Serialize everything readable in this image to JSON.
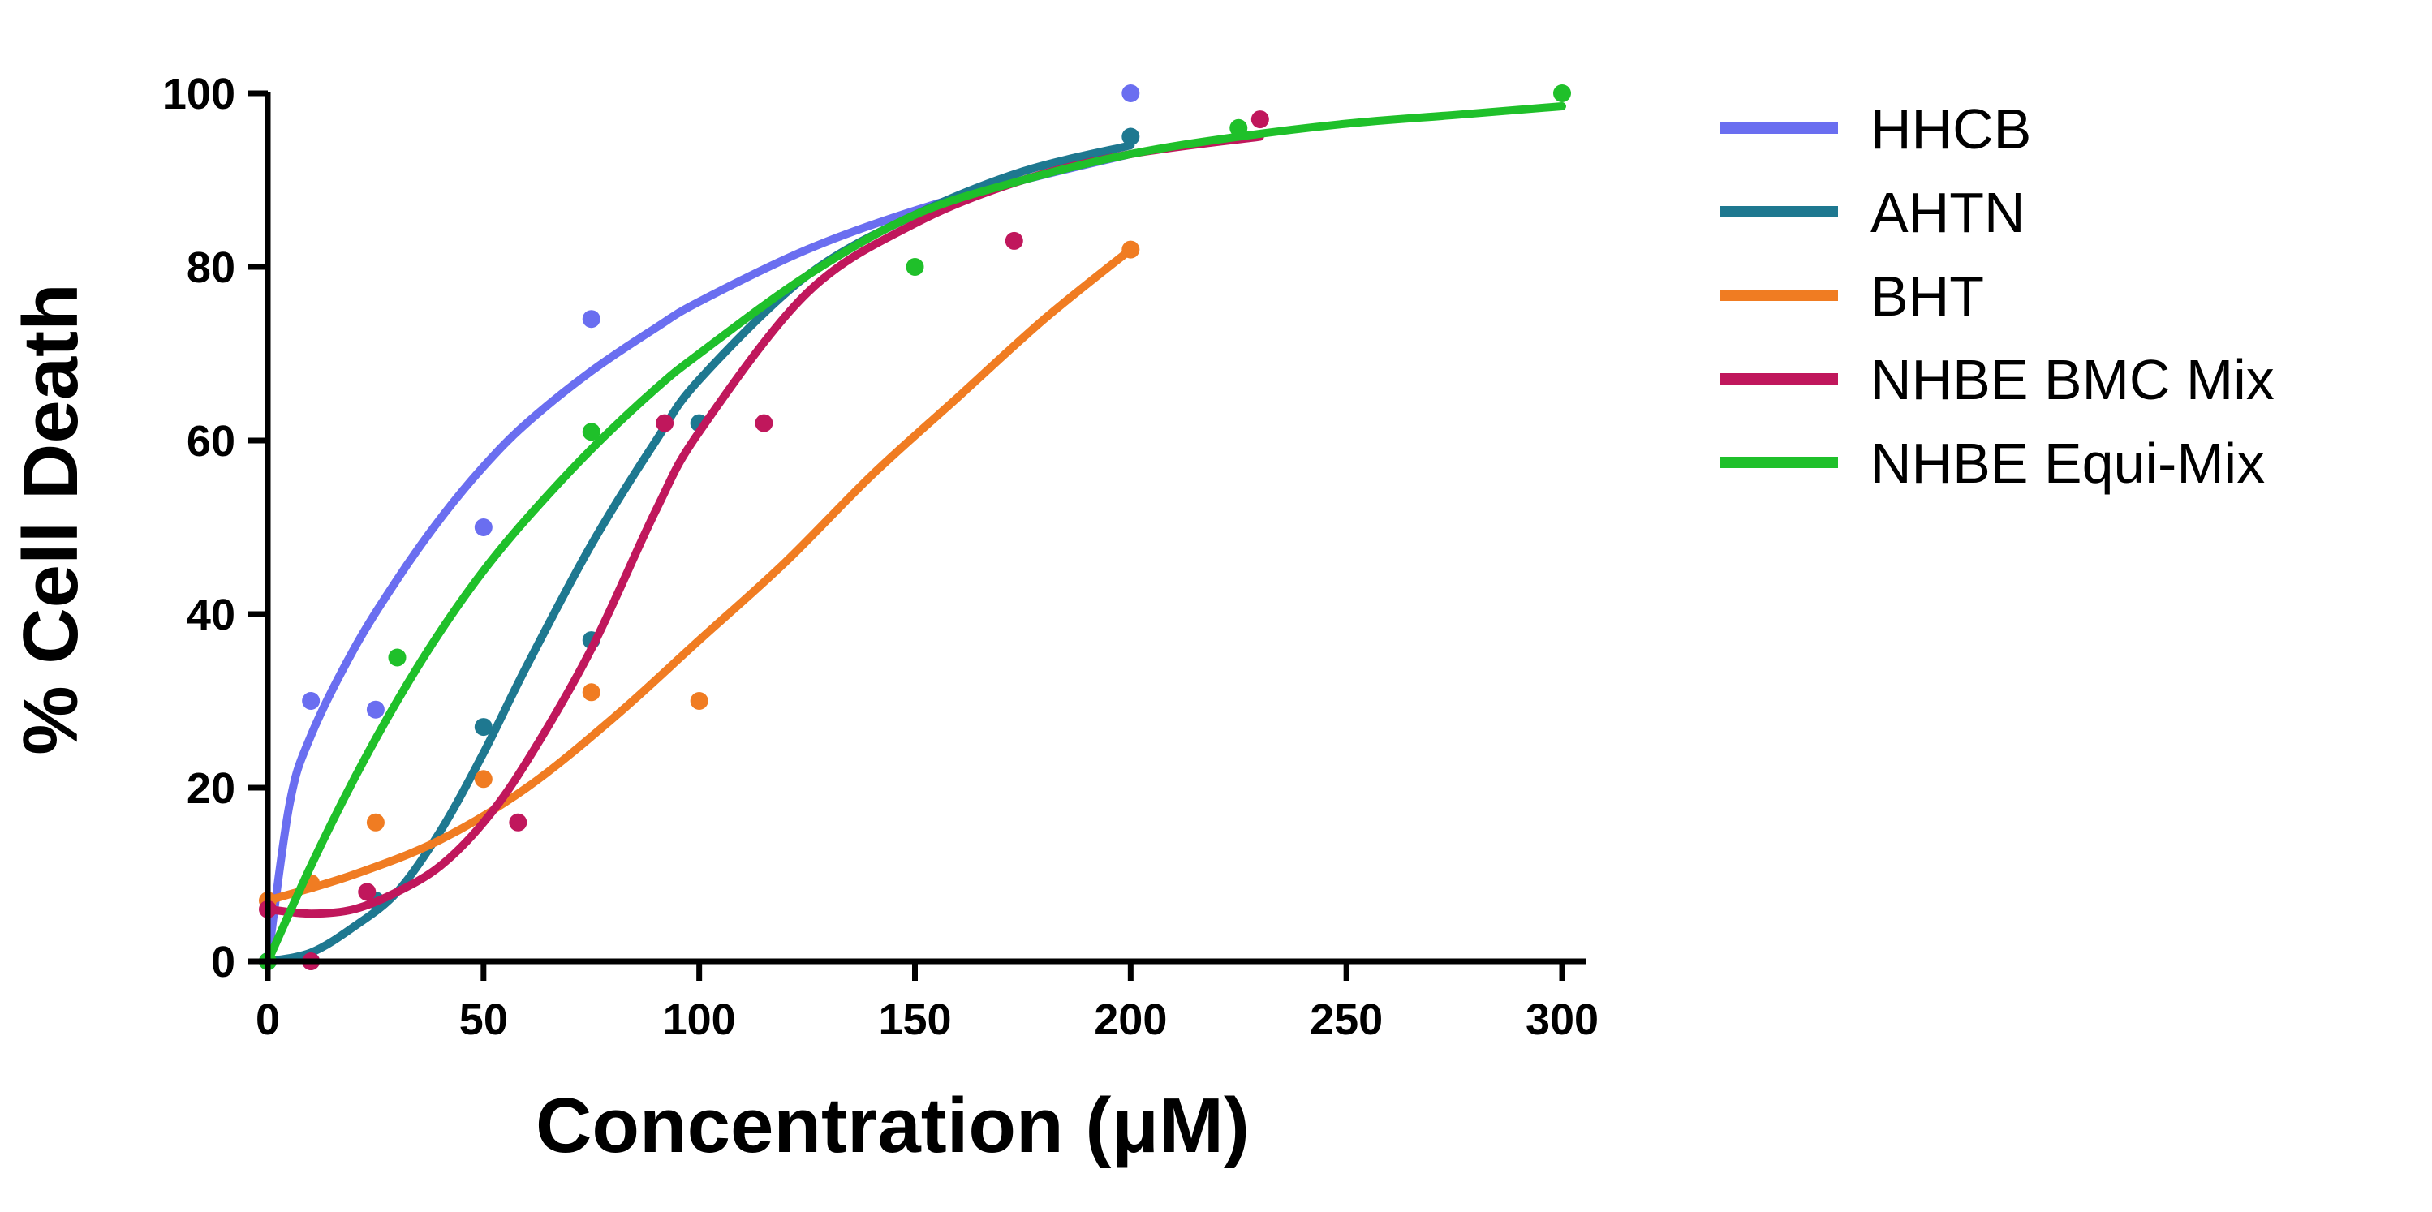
{
  "chart_data": {
    "type": "line",
    "title": "",
    "xlabel": "Concentration  (μM)",
    "ylabel": "% Cell Death",
    "xlim": [
      0,
      300
    ],
    "ylim": [
      0,
      100
    ],
    "xticks": [
      0,
      50,
      100,
      150,
      200,
      250,
      300
    ],
    "yticks": [
      0,
      20,
      40,
      60,
      80,
      100
    ],
    "x_tick_labels": [
      "0",
      "50",
      "100",
      "150",
      "200",
      "250",
      "300"
    ],
    "y_tick_labels": [
      "0",
      "20",
      "40",
      "60",
      "80",
      "100"
    ],
    "grid": false,
    "legend_position": "right",
    "series": [
      {
        "name": "HHCB",
        "color": "#6a6ef0",
        "points": [
          [
            0,
            0
          ],
          [
            10,
            30
          ],
          [
            25,
            29
          ],
          [
            50,
            50
          ],
          [
            75,
            74
          ],
          [
            200,
            100
          ]
        ],
        "curve": [
          [
            0,
            0
          ],
          [
            5,
            18
          ],
          [
            10,
            26
          ],
          [
            20,
            36
          ],
          [
            30,
            44
          ],
          [
            40,
            51
          ],
          [
            50,
            57
          ],
          [
            60,
            62
          ],
          [
            75,
            68
          ],
          [
            90,
            73
          ],
          [
            100,
            76
          ],
          [
            125,
            82
          ],
          [
            150,
            86.5
          ],
          [
            175,
            90
          ],
          [
            200,
            93
          ]
        ]
      },
      {
        "name": "AHTN",
        "color": "#1e7890",
        "points": [
          [
            0,
            0
          ],
          [
            10,
            0
          ],
          [
            25,
            7
          ],
          [
            50,
            27
          ],
          [
            75,
            37
          ],
          [
            100,
            62
          ],
          [
            200,
            95
          ]
        ],
        "curve": [
          [
            0,
            0
          ],
          [
            10,
            1
          ],
          [
            20,
            4
          ],
          [
            30,
            8
          ],
          [
            40,
            15
          ],
          [
            50,
            24
          ],
          [
            60,
            34
          ],
          [
            75,
            48
          ],
          [
            90,
            60
          ],
          [
            100,
            67
          ],
          [
            125,
            79
          ],
          [
            150,
            86
          ],
          [
            175,
            91
          ],
          [
            200,
            94
          ]
        ]
      },
      {
        "name": "BHT",
        "color": "#f07c22",
        "points": [
          [
            0,
            7
          ],
          [
            10,
            9
          ],
          [
            25,
            16
          ],
          [
            50,
            21
          ],
          [
            75,
            31
          ],
          [
            100,
            30
          ],
          [
            200,
            82
          ]
        ],
        "curve": [
          [
            0,
            7
          ],
          [
            20,
            10
          ],
          [
            40,
            14
          ],
          [
            60,
            20
          ],
          [
            80,
            28
          ],
          [
            100,
            37
          ],
          [
            120,
            46
          ],
          [
            140,
            56
          ],
          [
            160,
            65
          ],
          [
            180,
            74
          ],
          [
            200,
            82
          ]
        ]
      },
      {
        "name": "NHBE BMC Mix",
        "color": "#c0175c",
        "points": [
          [
            0,
            6
          ],
          [
            10,
            0
          ],
          [
            23,
            8
          ],
          [
            58,
            16
          ],
          [
            92,
            62
          ],
          [
            115,
            62
          ],
          [
            173,
            83
          ],
          [
            230,
            97
          ]
        ],
        "curve": [
          [
            0,
            6
          ],
          [
            10,
            5.5
          ],
          [
            20,
            6
          ],
          [
            30,
            8
          ],
          [
            40,
            11
          ],
          [
            50,
            16
          ],
          [
            60,
            23
          ],
          [
            75,
            36
          ],
          [
            90,
            52
          ],
          [
            100,
            61
          ],
          [
            125,
            77
          ],
          [
            150,
            85
          ],
          [
            175,
            90
          ],
          [
            200,
            93
          ],
          [
            230,
            95
          ]
        ]
      },
      {
        "name": "NHBE Equi-Mix",
        "color": "#1fc02a",
        "points": [
          [
            0,
            0
          ],
          [
            30,
            35
          ],
          [
            75,
            61
          ],
          [
            150,
            80
          ],
          [
            225,
            96
          ],
          [
            300,
            100
          ]
        ],
        "curve": [
          [
            0,
            0
          ],
          [
            10,
            11
          ],
          [
            20,
            21
          ],
          [
            30,
            30
          ],
          [
            40,
            38
          ],
          [
            50,
            45
          ],
          [
            60,
            51
          ],
          [
            75,
            59
          ],
          [
            90,
            66
          ],
          [
            100,
            70
          ],
          [
            125,
            79
          ],
          [
            150,
            86
          ],
          [
            175,
            90
          ],
          [
            200,
            93
          ],
          [
            225,
            95
          ],
          [
            250,
            96.5
          ],
          [
            275,
            97.5
          ],
          [
            300,
            98.5
          ]
        ]
      }
    ]
  }
}
